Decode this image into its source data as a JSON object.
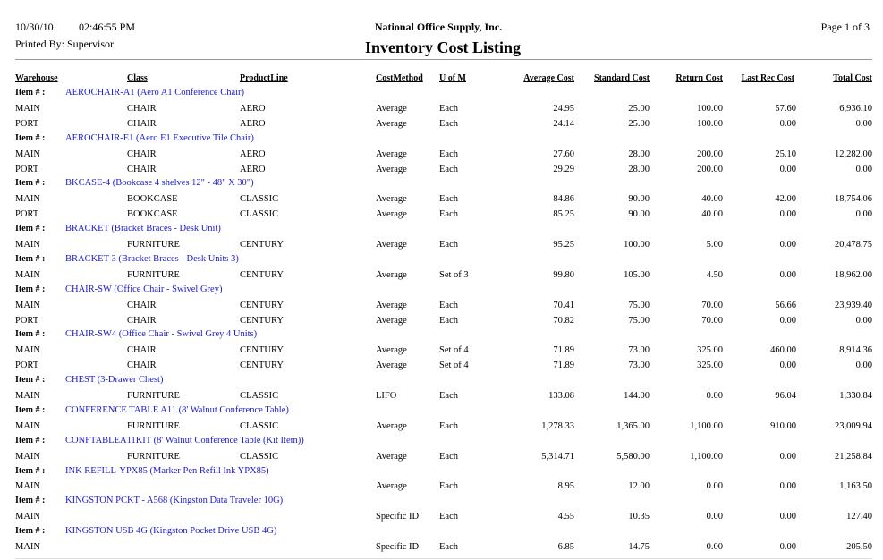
{
  "header": {
    "date": "10/30/10",
    "time": "02:46:55 PM",
    "printed_by": "Printed By: Supervisor",
    "company": "National Office Supply, Inc.",
    "title": "Inventory Cost Listing",
    "page": "Page 1 of 3"
  },
  "columns": [
    "Warehouse",
    "Class",
    "ProductLine",
    "CostMethod",
    "U of M",
    "Average Cost",
    "Standard Cost",
    "Return Cost",
    "Last Rec Cost",
    "Total Cost"
  ],
  "item_label": "Item # :",
  "items": [
    {
      "item": "AEROCHAIR-A1 (Aero A1 Conference Chair)",
      "rows": [
        [
          "MAIN",
          "CHAIR",
          "AERO",
          "Average",
          "Each",
          "24.95",
          "25.00",
          "100.00",
          "57.60",
          "6,936.10"
        ],
        [
          "PORT",
          "CHAIR",
          "AERO",
          "Average",
          "Each",
          "24.14",
          "25.00",
          "100.00",
          "0.00",
          "0.00"
        ]
      ]
    },
    {
      "item": "AEROCHAIR-E1 (Aero E1 Executive Tile Chair)",
      "rows": [
        [
          "MAIN",
          "CHAIR",
          "AERO",
          "Average",
          "Each",
          "27.60",
          "28.00",
          "200.00",
          "25.10",
          "12,282.00"
        ],
        [
          "PORT",
          "CHAIR",
          "AERO",
          "Average",
          "Each",
          "29.29",
          "28.00",
          "200.00",
          "0.00",
          "0.00"
        ]
      ]
    },
    {
      "item": "BKCASE-4 (Bookcase 4 shelves 12\" - 48\" X 30\")",
      "rows": [
        [
          "MAIN",
          "BOOKCASE",
          "CLASSIC",
          "Average",
          "Each",
          "84.86",
          "90.00",
          "40.00",
          "42.00",
          "18,754.06"
        ],
        [
          "PORT",
          "BOOKCASE",
          "CLASSIC",
          "Average",
          "Each",
          "85.25",
          "90.00",
          "40.00",
          "0.00",
          "0.00"
        ]
      ]
    },
    {
      "item": "BRACKET (Bracket Braces - Desk Unit)",
      "rows": [
        [
          "MAIN",
          "FURNITURE",
          "CENTURY",
          "Average",
          "Each",
          "95.25",
          "100.00",
          "5.00",
          "0.00",
          "20,478.75"
        ]
      ]
    },
    {
      "item": "BRACKET-3 (Bracket Braces - Desk Units 3)",
      "rows": [
        [
          "MAIN",
          "FURNITURE",
          "CENTURY",
          "Average",
          "Set of 3",
          "99.80",
          "105.00",
          "4.50",
          "0.00",
          "18,962.00"
        ]
      ]
    },
    {
      "item": "CHAIR-SW (Office Chair - Swivel Grey)",
      "rows": [
        [
          "MAIN",
          "CHAIR",
          "CENTURY",
          "Average",
          "Each",
          "70.41",
          "75.00",
          "70.00",
          "56.66",
          "23,939.40"
        ],
        [
          "PORT",
          "CHAIR",
          "CENTURY",
          "Average",
          "Each",
          "70.82",
          "75.00",
          "70.00",
          "0.00",
          "0.00"
        ]
      ]
    },
    {
      "item": "CHAIR-SW4 (Office Chair - Swivel Grey 4 Units)",
      "rows": [
        [
          "MAIN",
          "CHAIR",
          "CENTURY",
          "Average",
          "Set of 4",
          "71.89",
          "73.00",
          "325.00",
          "460.00",
          "8,914.36"
        ],
        [
          "PORT",
          "CHAIR",
          "CENTURY",
          "Average",
          "Set of 4",
          "71.89",
          "73.00",
          "325.00",
          "0.00",
          "0.00"
        ]
      ]
    },
    {
      "item": "CHEST (3-Drawer Chest)",
      "rows": [
        [
          "MAIN",
          "FURNITURE",
          "CLASSIC",
          "LIFO",
          "Each",
          "133.08",
          "144.00",
          "0.00",
          "96.04",
          "1,330.84"
        ]
      ]
    },
    {
      "item": "CONFERENCE TABLE A11 (8' Walnut Conference Table)",
      "rows": [
        [
          "MAIN",
          "FURNITURE",
          "CLASSIC",
          "Average",
          "Each",
          "1,278.33",
          "1,365.00",
          "1,100.00",
          "910.00",
          "23,009.94"
        ]
      ]
    },
    {
      "item": "CONFTABLEA11KIT (8' Walnut Conference Table (Kit Item))",
      "rows": [
        [
          "MAIN",
          "FURNITURE",
          "CLASSIC",
          "Average",
          "Each",
          "5,314.71",
          "5,580.00",
          "1,100.00",
          "0.00",
          "21,258.84"
        ]
      ]
    },
    {
      "item": "INK REFILL-YPX85 (Marker Pen Refill Ink YPX85)",
      "rows": [
        [
          "MAIN",
          null,
          null,
          "Average",
          "Each",
          "8.95",
          "12.00",
          "0.00",
          "0.00",
          "1,163.50"
        ]
      ]
    },
    {
      "item": "KINGSTON PCKT - A568 (Kingston Data Traveler 10G)",
      "rows": [
        [
          "MAIN",
          null,
          null,
          "Specific ID",
          "Each",
          "4.55",
          "10.35",
          "0.00",
          "0.00",
          "127.40"
        ]
      ]
    },
    {
      "item": "KINGSTON USB 4G (Kingston Pocket Drive USB 4G)",
      "rows": [
        [
          "MAIN",
          null,
          null,
          "Specific ID",
          "Each",
          "6.85",
          "14.75",
          "0.00",
          "0.00",
          "205.50"
        ]
      ]
    }
  ]
}
